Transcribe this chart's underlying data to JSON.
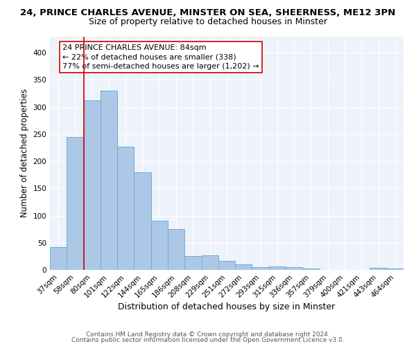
{
  "title1": "24, PRINCE CHARLES AVENUE, MINSTER ON SEA, SHEERNESS, ME12 3PN",
  "title2": "Size of property relative to detached houses in Minster",
  "xlabel": "Distribution of detached houses by size in Minster",
  "ylabel": "Number of detached properties",
  "categories": [
    "37sqm",
    "58sqm",
    "80sqm",
    "101sqm",
    "122sqm",
    "144sqm",
    "165sqm",
    "186sqm",
    "208sqm",
    "229sqm",
    "251sqm",
    "272sqm",
    "293sqm",
    "315sqm",
    "336sqm",
    "357sqm",
    "379sqm",
    "400sqm",
    "421sqm",
    "443sqm",
    "464sqm"
  ],
  "values": [
    42,
    245,
    312,
    330,
    227,
    180,
    90,
    75,
    26,
    27,
    17,
    10,
    5,
    6,
    5,
    3,
    0,
    0,
    0,
    4,
    3
  ],
  "bar_color": "#adc8e6",
  "bar_edge_color": "#6aaed6",
  "vline_color": "#cc0000",
  "annotation_text": "24 PRINCE CHARLES AVENUE: 84sqm\n← 22% of detached houses are smaller (338)\n77% of semi-detached houses are larger (1,202) →",
  "annotation_box_color": "#ffffff",
  "annotation_box_edge": "#cc0000",
  "footer1": "Contains HM Land Registry data © Crown copyright and database right 2024.",
  "footer2": "Contains public sector information licensed under the Open Government Licence v3.0.",
  "background_color": "#eef2fa",
  "ylim": [
    0,
    430
  ],
  "yticks": [
    0,
    50,
    100,
    150,
    200,
    250,
    300,
    350,
    400
  ],
  "title1_fontsize": 9.5,
  "title2_fontsize": 9,
  "xlabel_fontsize": 9,
  "ylabel_fontsize": 8.5,
  "tick_fontsize": 7.5,
  "annotation_fontsize": 8
}
